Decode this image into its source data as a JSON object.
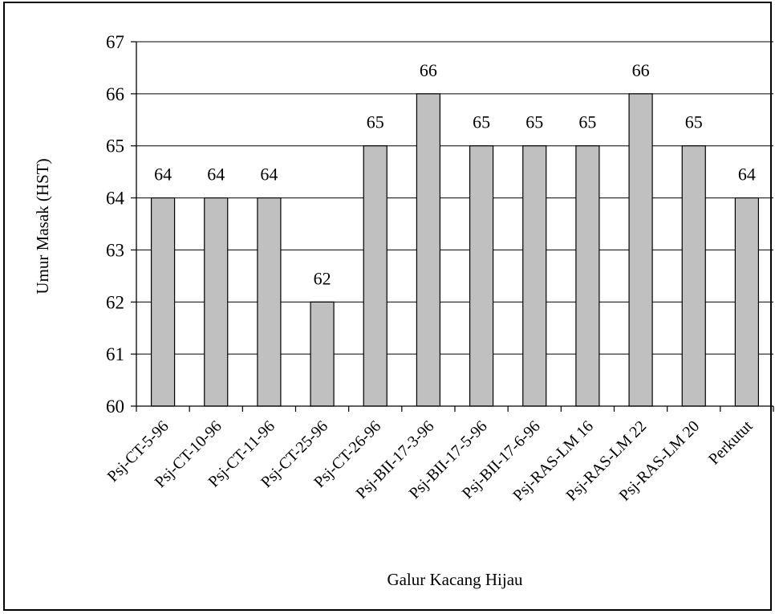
{
  "chart_data": {
    "type": "bar",
    "title": "",
    "xlabel": "Galur Kacang Hijau",
    "ylabel": "Umur Masak (HST)",
    "categories": [
      "Psj-CT-5-96",
      "Psj-CT-10-96",
      "Psj-CT-11-96",
      "Psj-CT-25-96",
      "Psj-CT-26-96",
      "Psj-BII-17-3-96",
      "Psj-BII-17-5-96",
      "Psj-BII-17-6-96",
      "Psj-RAS-LM 16",
      "Psj-RAS-LM 22",
      "Psj-RAS-LM 20",
      "Perkutut"
    ],
    "values": [
      64,
      64,
      64,
      62,
      65,
      66,
      65,
      65,
      65,
      66,
      65,
      64
    ],
    "data_labels": [
      "64",
      "64",
      "64",
      "62",
      "65",
      "66",
      "65",
      "65",
      "65",
      "66",
      "65",
      "64"
    ],
    "ylim": [
      60,
      67
    ],
    "yticks": [
      "60",
      "61",
      "62",
      "63",
      "64",
      "65",
      "66",
      "67"
    ],
    "grid": true,
    "legend": "none",
    "colors": {
      "bar_fill": "#c0c0c0",
      "bar_stroke": "#000000",
      "grid": "#000000",
      "background": "#ffffff"
    }
  }
}
